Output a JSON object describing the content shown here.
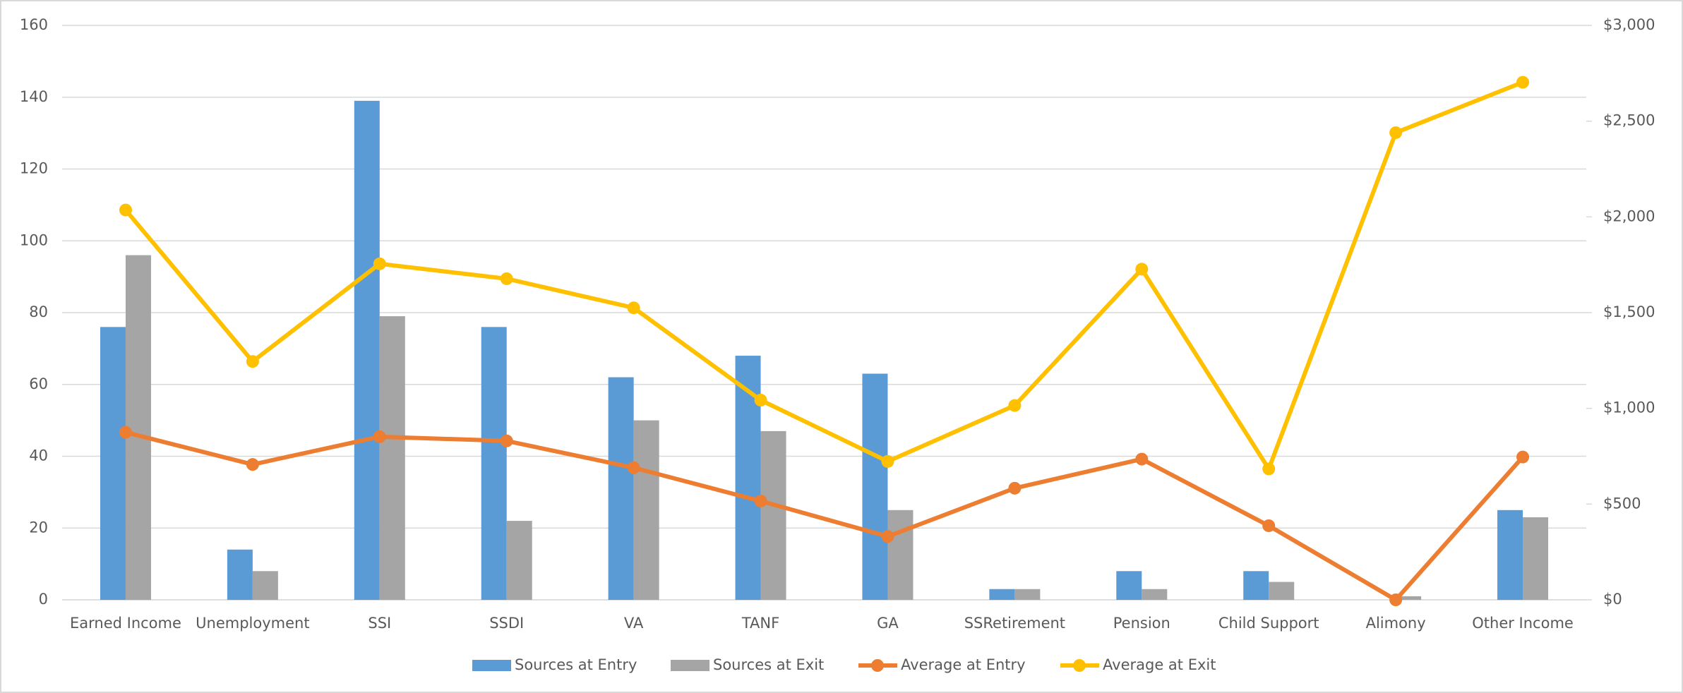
{
  "chart_data": {
    "type": "bar-line",
    "categories": [
      "Earned Income",
      "Unemployment",
      "SSI",
      "SSDI",
      "VA",
      "TANF",
      "GA",
      "SSRetirement",
      "Pension",
      "Child Support",
      "Alimony",
      "Other Income"
    ],
    "series": [
      {
        "name": "Sources at Entry",
        "type": "bar",
        "color": "#5b9bd5",
        "values": [
          76,
          14,
          139,
          76,
          62,
          68,
          63,
          3,
          8,
          8,
          0,
          25
        ]
      },
      {
        "name": "Sources at Exit",
        "type": "bar",
        "color": "#a5a5a5",
        "values": [
          96,
          8,
          79,
          22,
          50,
          47,
          25,
          3,
          3,
          5,
          1,
          23
        ]
      },
      {
        "name": "Average at Entry",
        "type": "line",
        "axis": "y2",
        "color": "#ed7d31",
        "values": [
          875,
          707,
          852,
          830,
          690,
          516,
          331,
          583,
          735,
          387,
          0,
          746
        ]
      },
      {
        "name": "Average at Exit",
        "type": "line",
        "axis": "y2",
        "color": "#ffc000",
        "values": [
          2036,
          1245,
          1755,
          1677,
          1525,
          1043,
          723,
          1015,
          1727,
          684,
          2440,
          2703
        ]
      }
    ],
    "ylim": [
      0,
      160
    ],
    "yticks": [
      0,
      20,
      40,
      60,
      80,
      100,
      120,
      140,
      160
    ],
    "y2lim": [
      0,
      3000
    ],
    "y2ticks": [
      {
        "value": 0,
        "label": "$0"
      },
      {
        "value": 500,
        "label": "$500"
      },
      {
        "value": 1000,
        "label": "$1,000"
      },
      {
        "value": 1500,
        "label": "$1,500"
      },
      {
        "value": 2000,
        "label": "$2,000"
      },
      {
        "value": 2500,
        "label": "$2,500"
      },
      {
        "value": 3000,
        "label": "$3,000"
      }
    ],
    "grid": true,
    "legend": "bottom"
  }
}
